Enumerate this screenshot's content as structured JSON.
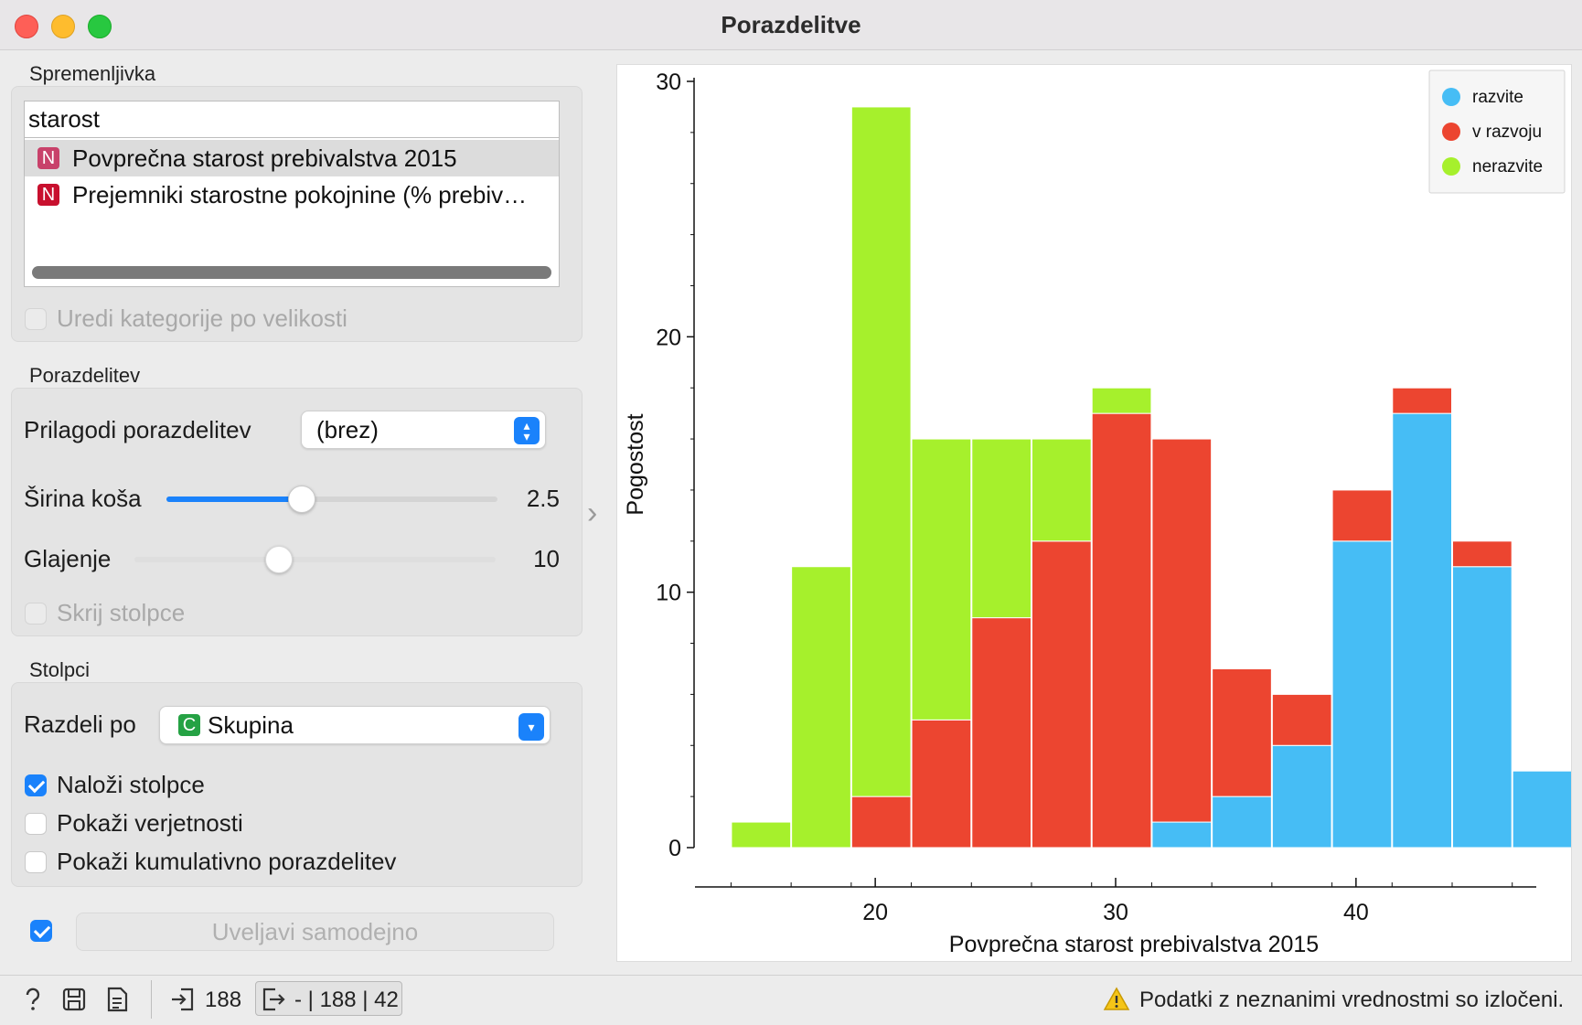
{
  "window": {
    "title": "Porazdelitve"
  },
  "variable_section": {
    "label": "Spremenljivka",
    "search_value": "starost",
    "items": [
      {
        "badge": "N",
        "label": "Povprečna starost prebivalstva 2015",
        "selected": true
      },
      {
        "badge": "N",
        "label": "Prejemniki starostne pokojnine (% prebiv…",
        "selected": false
      }
    ],
    "sort_checkbox_label": "Uredi kategorije po velikosti"
  },
  "distribution_section": {
    "label": "Porazdelitev",
    "fit_label": "Prilagodi porazdelitev",
    "fit_value": "(brez)",
    "bin_width_label": "Širina koša",
    "bin_width_value": "2.5",
    "bin_width_fraction": 0.41,
    "smoothing_label": "Glajenje",
    "smoothing_value": "10",
    "smoothing_fraction": 0.4,
    "hide_bars_label": "Skrij stolpce"
  },
  "columns_section": {
    "label": "Stolpci",
    "split_label": "Razdeli po",
    "split_badge": "C",
    "split_value": "Skupina",
    "stack_label": "Naloži stolpce",
    "stack_checked": true,
    "probabilities_label": "Pokaži verjetnosti",
    "probabilities_checked": false,
    "cumulative_label": "Pokaži kumulativno porazdelitev",
    "cumulative_checked": false
  },
  "apply": {
    "auto_checked": true,
    "label": "Uveljavi samodejno"
  },
  "statusbar": {
    "input_count": "188",
    "output_summary": "- | 188 | 42",
    "warning": "Podatki z neznanimi vrednostmi so izločeni."
  },
  "colors": {
    "razvite": "#46bdf5",
    "v razvoju": "#ec4530",
    "nerazvite": "#a6f02c",
    "accent": "#1a82fb"
  },
  "chart_data": {
    "type": "bar",
    "stacked": true,
    "xlabel": "Povprečna starost prebivalstva 2015",
    "ylabel": "Pogostost",
    "xlim": [
      12.5,
      47.5
    ],
    "ylim": [
      0,
      30
    ],
    "x_ticks": [
      20,
      30,
      40
    ],
    "y_ticks": [
      0,
      10,
      20,
      30
    ],
    "bin_width": 2.5,
    "legend_position": "top-right",
    "bins": [
      {
        "start": 14.0,
        "razvite": 0,
        "v razvoju": 0,
        "nerazvite": 1
      },
      {
        "start": 16.5,
        "razvite": 0,
        "v razvoju": 0,
        "nerazvite": 11
      },
      {
        "start": 19.0,
        "razvite": 0,
        "v razvoju": 2,
        "nerazvite": 27
      },
      {
        "start": 21.5,
        "razvite": 0,
        "v razvoju": 5,
        "nerazvite": 11
      },
      {
        "start": 24.0,
        "razvite": 0,
        "v razvoju": 9,
        "nerazvite": 7
      },
      {
        "start": 26.5,
        "razvite": 0,
        "v razvoju": 12,
        "nerazvite": 4
      },
      {
        "start": 29.0,
        "razvite": 0,
        "v razvoju": 17,
        "nerazvite": 1
      },
      {
        "start": 31.5,
        "razvite": 1,
        "v razvoju": 15,
        "nerazvite": 0
      },
      {
        "start": 34.0,
        "razvite": 2,
        "v razvoju": 5,
        "nerazvite": 0
      },
      {
        "start": 36.5,
        "razvite": 4,
        "v razvoju": 2,
        "nerazvite": 0
      },
      {
        "start": 39.0,
        "razvite": 12,
        "v razvoju": 2,
        "nerazvite": 0
      },
      {
        "start": 41.5,
        "razvite": 17,
        "v razvoju": 1,
        "nerazvite": 0
      },
      {
        "start": 44.0,
        "razvite": 11,
        "v razvoju": 1,
        "nerazvite": 0
      },
      {
        "start": 46.5,
        "razvite": 3,
        "v razvoju": 0,
        "nerazvite": 0
      }
    ],
    "series": [
      {
        "name": "razvite"
      },
      {
        "name": "v razvoju"
      },
      {
        "name": "nerazvite"
      }
    ]
  }
}
